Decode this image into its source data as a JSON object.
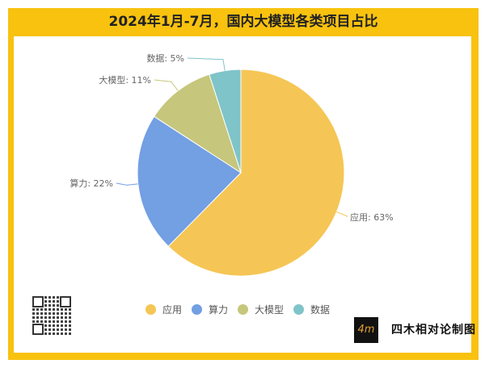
{
  "chart_data": {
    "type": "pie",
    "title": "2024年1月-7月，国内大模型各类项目占比",
    "categories": [
      "应用",
      "算力",
      "大模型",
      "数据"
    ],
    "values": [
      63,
      22,
      11,
      5
    ],
    "labels": [
      "应用: 63%",
      "算力: 22%",
      "大模型: 11%",
      "数据: 5%"
    ],
    "colors": [
      "#f5c655",
      "#739fe3",
      "#c6c67c",
      "#7fc4c9"
    ],
    "legend_placement": "bottom",
    "start_angle": "12 o'clock, clockwise"
  },
  "brand": {
    "logo_mark": "4m",
    "name": "四木相对论制图"
  },
  "frame_color": "#f8c20f"
}
